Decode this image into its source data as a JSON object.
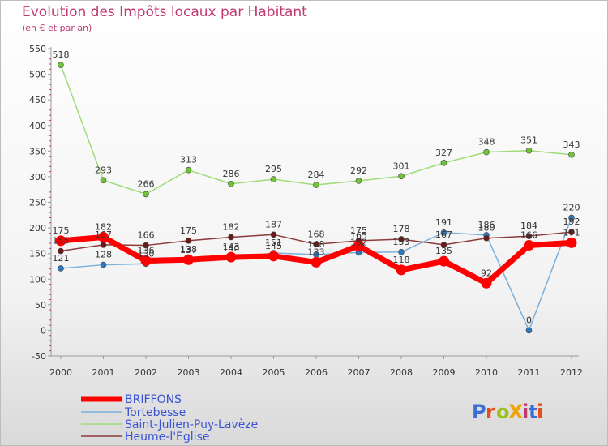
{
  "title": "Evolution des Impôts locaux par Habitant",
  "subtitle": "(en € et par an)",
  "logo": {
    "text": "ProXiti",
    "colors": [
      "#3b6fd6",
      "#e84c1a",
      "#9ac21b",
      "#f0a40a",
      "#c0396f"
    ]
  },
  "chart_data": {
    "type": "line",
    "title": "Evolution des Impôts locaux par Habitant",
    "subtitle": "(en € et par an)",
    "xlabel": "",
    "ylabel": "",
    "x": [
      "2000",
      "2001",
      "2002",
      "2003",
      "2004",
      "2005",
      "2006",
      "2007",
      "2008",
      "2009",
      "2010",
      "2011",
      "2012"
    ],
    "ylim": [
      -50,
      550
    ],
    "yticks": [
      -50,
      0,
      50,
      100,
      150,
      200,
      250,
      300,
      350,
      400,
      450,
      500,
      550
    ],
    "grid": false,
    "legend_position": "bottom-left",
    "series": [
      {
        "name": "BRIFFONS",
        "color": "#ff0000",
        "marker": "#ff0000",
        "values": [
          175,
          182,
          136,
          138,
          143,
          145,
          133,
          165,
          118,
          135,
          92,
          166,
          171
        ],
        "labels": [
          "175",
          "182",
          "136",
          "138",
          "143",
          "145",
          "133",
          "165",
          "118",
          "135",
          "92",
          "166",
          "171"
        ]
      },
      {
        "name": "Tortebesse",
        "color": "#7ab0db",
        "marker": "#2e78c0",
        "values": [
          121,
          128,
          130,
          137,
          140,
          151,
          148,
          152,
          153,
          191,
          186,
          0,
          220
        ],
        "labels": [
          "121",
          "128",
          "130",
          "137",
          "140",
          "151",
          "148",
          "152",
          "153",
          "191",
          "186",
          "0",
          "220"
        ]
      },
      {
        "name": "Saint-Julien-Puy-Lavèze",
        "color": "#9fdc77",
        "marker": "#71c43a",
        "values": [
          518,
          293,
          266,
          313,
          286,
          295,
          284,
          292,
          301,
          327,
          348,
          351,
          343
        ],
        "labels": [
          "518",
          "293",
          "266",
          "313",
          "286",
          "295",
          "284",
          "292",
          "301",
          "327",
          "348",
          "351",
          "343"
        ]
      },
      {
        "name": "Heume-l'Eglise",
        "color": "#8d3a3a",
        "marker": "#6b1a1a",
        "values": [
          155,
          167,
          166,
          175,
          182,
          187,
          168,
          175,
          178,
          167,
          180,
          184,
          192
        ],
        "labels": [
          "155",
          "167",
          "166",
          "175",
          "182",
          "187",
          "168",
          "175",
          "178",
          "167",
          "180",
          "184",
          "192"
        ]
      }
    ]
  }
}
